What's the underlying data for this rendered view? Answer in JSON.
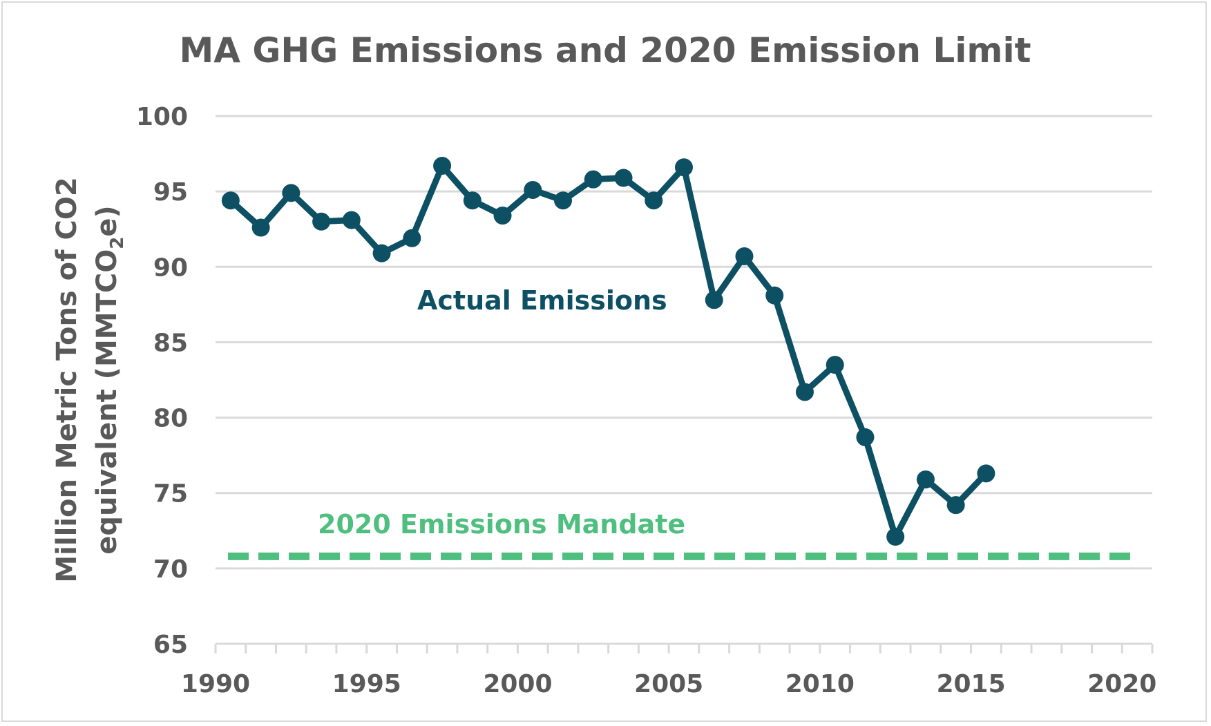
{
  "chart_data": {
    "type": "line",
    "title": "MA GHG Emissions and 2020 Emission Limit",
    "ylabel_line1": "Million Metric Tons of CO2",
    "ylabel_line2_prefix": "equivalent (MMTCO",
    "ylabel_line2_sub": "2",
    "ylabel_line2_suffix": "e)",
    "xlim": [
      1990,
      2021
    ],
    "ylim": [
      65,
      100
    ],
    "yticks": [
      "65",
      "70",
      "75",
      "80",
      "85",
      "90",
      "95",
      "100"
    ],
    "xticks": [
      "1990",
      "1995",
      "2000",
      "2005",
      "2010",
      "2015",
      "2020"
    ],
    "grid": true,
    "series": [
      {
        "name": "Actual Emissions",
        "color": "#0d4f63",
        "x": [
          1990,
          1991,
          1992,
          1993,
          1994,
          1995,
          1996,
          1997,
          1998,
          1999,
          2000,
          2001,
          2002,
          2003,
          2004,
          2005,
          2006,
          2007,
          2008,
          2009,
          2010,
          2011,
          2012,
          2013,
          2014,
          2015
        ],
        "values": [
          94.4,
          92.6,
          94.9,
          93.0,
          93.1,
          90.9,
          91.9,
          96.7,
          94.4,
          93.4,
          95.1,
          94.4,
          95.8,
          95.9,
          94.4,
          96.6,
          87.8,
          90.7,
          88.1,
          81.7,
          83.5,
          78.7,
          72.1,
          75.9,
          74.2,
          76.3
        ]
      },
      {
        "name": "2020 Emissions Mandate",
        "color": "#4fbf7f",
        "x": [
          1990,
          2020
        ],
        "values": [
          70.8,
          70.8
        ]
      }
    ]
  }
}
